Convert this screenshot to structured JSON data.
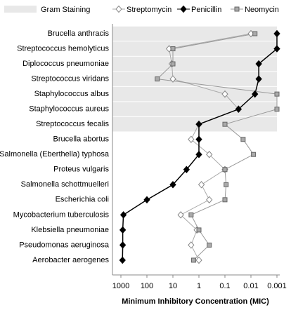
{
  "chart_data": {
    "type": "dot",
    "x_label": "Minimum Inhibitory Concentration (MIC)",
    "categories": [
      "Brucella anthracis",
      "Streptococcus hemolyticus",
      "Diplococcus pneumoniae",
      "Streptococcus viridans",
      "Staphylococcus albus",
      "Staphylococcus aureus",
      "Streptococcus fecalis",
      "Brucella abortus",
      "Salmonella (Eberthella) typhosa",
      "Proteus vulgaris",
      "Salmonella schottmuelleri",
      "Escherichia coli",
      "Mycobacterium tuberculosis",
      "Klebsiella pneumoniae",
      "Pseudomonas aeruginosa",
      "Aerobacter aerogenes"
    ],
    "band": {
      "name": "Gram Staining",
      "color": "#e8e8e8",
      "rows": [
        true,
        true,
        true,
        true,
        true,
        true,
        true,
        false,
        false,
        false,
        false,
        false,
        false,
        false,
        false,
        false
      ]
    },
    "series": [
      {
        "name": "Streptomycin",
        "color": "#ffffff",
        "line": "#aaaaaa",
        "marker": "diamond",
        "values": [
          0.01,
          14,
          11,
          10,
          0.1,
          0.03,
          1,
          2,
          0.4,
          0.1,
          0.8,
          0.4,
          5,
          1.2,
          2,
          1
        ]
      },
      {
        "name": "Penicillin",
        "color": "#000000",
        "line": "#000000",
        "marker": "diamond",
        "values": [
          0.001,
          0.001,
          0.005,
          0.005,
          0.007,
          0.03,
          1,
          1,
          1,
          3,
          10,
          100,
          800,
          850,
          850,
          870
        ]
      },
      {
        "name": "Neomycin",
        "color": "#aaaaaa",
        "line": "#999999",
        "marker": "square",
        "values": [
          0.007,
          10,
          10,
          40,
          0.001,
          0.001,
          0.1,
          0.02,
          0.008,
          0.1,
          0.09,
          0.1,
          2,
          1,
          0.4,
          1.6
        ]
      }
    ],
    "xscale": "log",
    "xlim": [
      1000,
      0.001
    ],
    "xticks": [
      1000,
      100,
      10,
      1,
      0.1,
      0.01,
      0.001
    ]
  }
}
